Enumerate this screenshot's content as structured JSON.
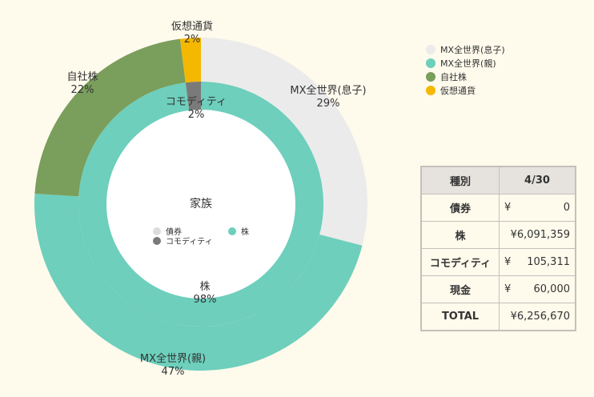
{
  "chart_data": {
    "type": "donut",
    "center_title": "家族",
    "outer": [
      {
        "name": "MX全世界(息子)",
        "percent": 29,
        "label": "29%",
        "color": "#ebebeb"
      },
      {
        "name": "MX全世界(親)",
        "percent": 47,
        "label": "47%",
        "color": "#6dcfbc"
      },
      {
        "name": "自社株",
        "percent": 22,
        "label": "22%",
        "color": "#7a9e5c"
      },
      {
        "name": "仮想通貨",
        "percent": 2,
        "label": "2%",
        "color": "#f5b800"
      }
    ],
    "inner": [
      {
        "name": "株",
        "percent": 98,
        "label": "98%",
        "color": "#6dcfbc"
      },
      {
        "name": "コモディティ",
        "percent": 2,
        "label": "2%",
        "color": "#7a7a7a"
      }
    ],
    "inner_legend": [
      {
        "name": "債券",
        "color": "#dcdcdc"
      },
      {
        "name": "株",
        "color": "#6dcfbc"
      },
      {
        "name": "コモディティ",
        "color": "#7a7a7a"
      }
    ]
  },
  "legend": [
    {
      "name": "MX全世界(息子)",
      "color": "#ebebeb"
    },
    {
      "name": "MX全世界(親)",
      "color": "#6dcfbc"
    },
    {
      "name": "自社株",
      "color": "#7a9e5c"
    },
    {
      "name": "仮想通貨",
      "color": "#f5b800"
    }
  ],
  "table": {
    "headers": [
      "種別",
      "4/30"
    ],
    "rows": [
      {
        "label": "債券",
        "yen": "¥",
        "amount": "0"
      },
      {
        "label": "株",
        "yen": "",
        "amount": "¥6,091,359"
      },
      {
        "label": "コモディティ",
        "yen": "¥",
        "amount": "105,311"
      },
      {
        "label": "現金",
        "yen": "¥",
        "amount": "60,000"
      },
      {
        "label": "TOTAL",
        "yen": "",
        "amount": "¥6,256,670"
      }
    ]
  }
}
